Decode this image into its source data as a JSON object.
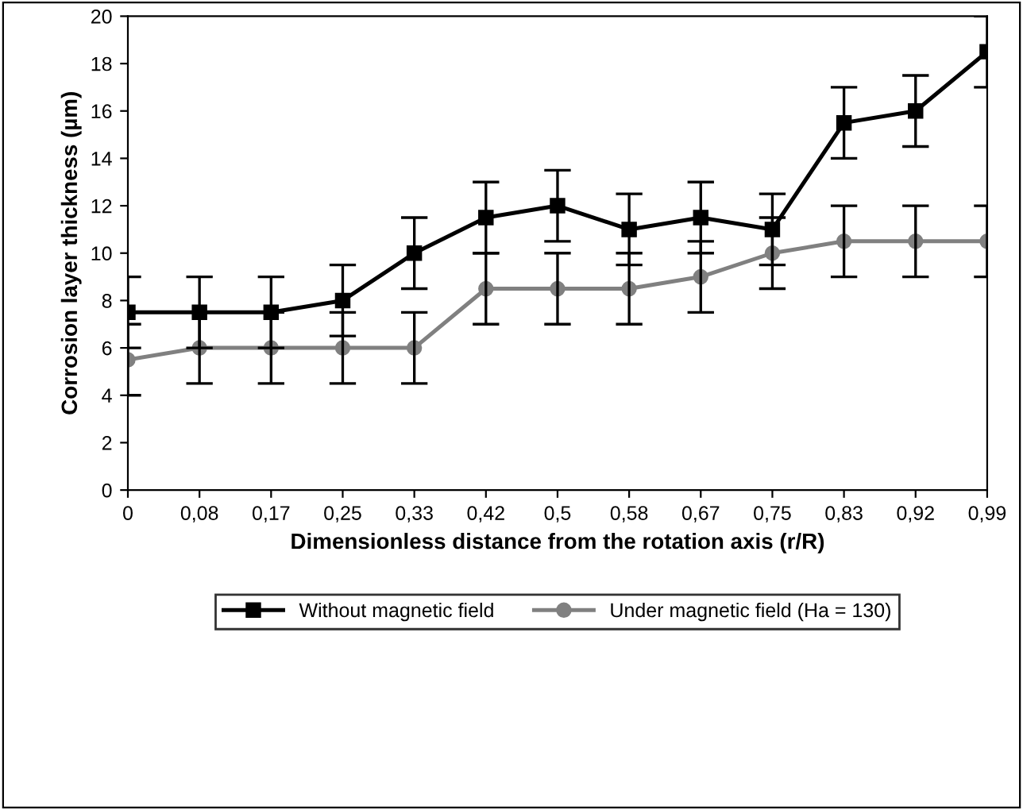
{
  "chart_data": {
    "type": "line",
    "xlabel": "Dimensionless distance from the rotation axis (r/R)",
    "ylabel": "Corrosion layer thickness (µm)",
    "categories": [
      "0",
      "0,08",
      "0,17",
      "0,25",
      "0,33",
      "0,42",
      "0,5",
      "0,58",
      "0,67",
      "0,75",
      "0,83",
      "0,92",
      "0,99"
    ],
    "series": [
      {
        "name": "Without magnetic field",
        "color": "#000000",
        "marker": "square",
        "values": [
          7.5,
          7.5,
          7.5,
          8,
          10,
          11.5,
          12,
          11,
          11.5,
          11,
          15.5,
          16,
          18.5
        ],
        "errors": [
          1.5,
          1.5,
          1.5,
          1.5,
          1.5,
          1.5,
          1.5,
          1.5,
          1.5,
          1.5,
          1.5,
          1.5,
          1.5
        ]
      },
      {
        "name": "Under magnetic field (Ha = 130)",
        "color": "#808080",
        "marker": "circle",
        "values": [
          5.5,
          6,
          6,
          6,
          6,
          8.5,
          8.5,
          8.5,
          9,
          10,
          10.5,
          10.5,
          10.5
        ],
        "errors": [
          1.5,
          1.5,
          1.5,
          1.5,
          1.5,
          1.5,
          1.5,
          1.5,
          1.5,
          1.5,
          1.5,
          1.5,
          1.5
        ]
      }
    ],
    "ylim": [
      0,
      20
    ],
    "yticks": [
      0,
      2,
      4,
      6,
      8,
      10,
      12,
      14,
      16,
      18,
      20
    ],
    "grid": false,
    "legend": "bottom",
    "line_style": "solid"
  }
}
